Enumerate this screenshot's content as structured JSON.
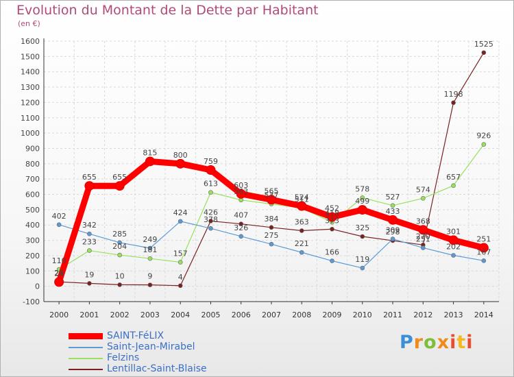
{
  "title": "Evolution du Montant de la Dette par Habitant",
  "subtitle": "(en €)",
  "brand": {
    "letters": [
      "P",
      "r",
      "o",
      "x",
      "i",
      "t",
      "i"
    ]
  },
  "chart_data": {
    "type": "line",
    "x": [
      "2000",
      "2001",
      "2002",
      "2003",
      "2004",
      "2005",
      "2006",
      "2007",
      "2008",
      "2009",
      "2010",
      "2011",
      "2012",
      "2013",
      "2014"
    ],
    "ylim": [
      -100,
      1600
    ],
    "yticks": [
      "-100",
      "0",
      "100",
      "200",
      "300",
      "400",
      "500",
      "600",
      "700",
      "800",
      "900",
      "1000",
      "1100",
      "1200",
      "1300",
      "1400",
      "1500",
      "1600"
    ],
    "grid": true,
    "legend_position": "bottom-left",
    "series": [
      {
        "name": "SAINT-FéLIX",
        "color": "#ff0000",
        "values": [
          28,
          655,
          655,
          815,
          800,
          759,
          603,
          565,
          524,
          452,
          499,
          433,
          368,
          301,
          251
        ],
        "labels": [
          "28",
          "655",
          "655",
          "815",
          "800",
          "759",
          "603",
          "565",
          "524",
          "452",
          "499",
          "433",
          "368",
          "301",
          "251"
        ]
      },
      {
        "name": "Saint-Jean-Mirabel",
        "color": "#5b9bd5",
        "values": [
          402,
          342,
          285,
          249,
          424,
          378,
          326,
          275,
          221,
          166,
          119,
          309,
          251,
          202,
          167
        ],
        "labels": [
          "402",
          "342",
          "285",
          "249",
          "424",
          "378",
          "326",
          "275",
          "221",
          "166",
          "119",
          "309",
          "251",
          "202",
          "167"
        ]
      },
      {
        "name": "Felzins",
        "color": "#99e05c",
        "values": [
          110,
          233,
          204,
          181,
          157,
          613,
          563,
          537,
          511,
          418,
          578,
          527,
          574,
          657,
          926
        ],
        "labels": [
          "110",
          "233",
          "204",
          "181",
          "157",
          "613",
          "563",
          "537",
          "511",
          "418",
          "578",
          "527",
          "574",
          "657",
          "926"
        ]
      },
      {
        "name": "Lentillac-Saint-Blaise",
        "color": "#7a2020",
        "values": [
          29,
          19,
          10,
          9,
          4,
          426,
          407,
          384,
          363,
          373,
          325,
          298,
          270,
          1198,
          1525
        ],
        "labels": [
          "29",
          "19",
          "10",
          "9",
          "4",
          "426",
          "407",
          "384",
          "363",
          "373",
          "325",
          "298",
          "270",
          "1198",
          "1525"
        ]
      }
    ]
  }
}
